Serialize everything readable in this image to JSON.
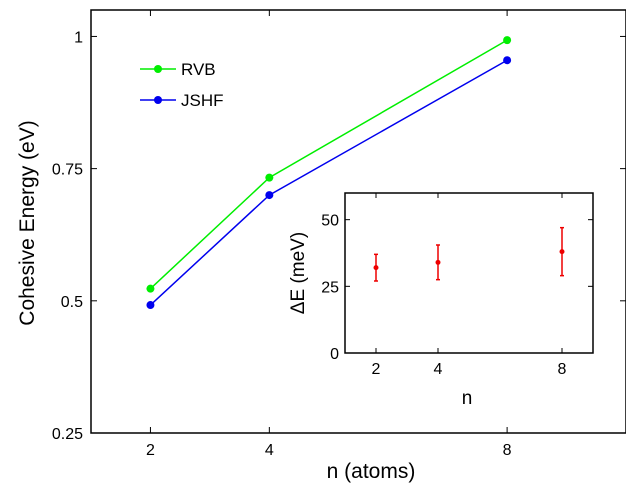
{
  "chart_data": [
    {
      "type": "line",
      "x": [
        2,
        4,
        8
      ],
      "xlim": [
        1,
        10
      ],
      "ylim": [
        0.25,
        1.05
      ],
      "xticks": [
        2,
        4,
        8
      ],
      "yticks": [
        0.25,
        0.5,
        0.75,
        1
      ],
      "xtick_labels": [
        "2",
        "4",
        "8"
      ],
      "ytick_labels": [
        "0.25",
        "0.5",
        "0.75",
        "1"
      ],
      "xlabel": "n (atoms)",
      "ylabel": "Cohesive Energy (eV)",
      "title": "",
      "grid": false,
      "legend": "top-left",
      "series": [
        {
          "name": "RVB",
          "color": "#00ee00",
          "values": [
            0.523,
            0.733,
            0.993
          ]
        },
        {
          "name": "JSHF",
          "color": "#0000ee",
          "values": [
            0.492,
            0.7,
            0.955
          ]
        }
      ]
    },
    {
      "type": "scatter",
      "x": [
        2,
        4,
        8
      ],
      "values": [
        32,
        34,
        38
      ],
      "errors": [
        5,
        6.5,
        9
      ],
      "xlim": [
        1,
        9
      ],
      "ylim": [
        0,
        60
      ],
      "xticks": [
        2,
        4,
        8
      ],
      "yticks": [
        0,
        25,
        50
      ],
      "xtick_labels": [
        "2",
        "4",
        "8"
      ],
      "ytick_labels": [
        "0",
        "25",
        "50"
      ],
      "xlabel": "n",
      "ylabel": "ΔE (meV)",
      "grid": false,
      "color": "#ee0000"
    }
  ]
}
